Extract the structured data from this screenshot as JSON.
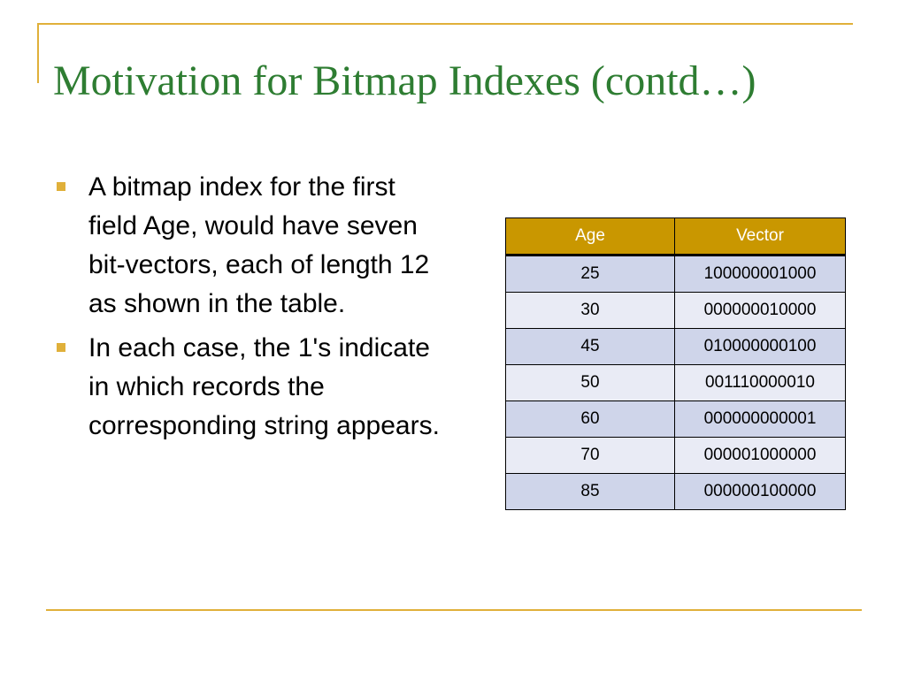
{
  "colors": {
    "accent": "#E0B03A",
    "title": "#2E7D32",
    "header_bg": "#C99700",
    "row_dark": "#CFD5EA",
    "row_light": "#E9EBF5"
  },
  "slide": {
    "title": "Motivation for Bitmap Indexes (contd…)",
    "bullets": [
      "A bitmap index for the first field Age, would have seven bit-vectors, each of length 12 as shown in the table.",
      "In each case, the 1's indicate in which records the corresponding string appears."
    ]
  },
  "table": {
    "headers": [
      "Age",
      "Vector"
    ],
    "rows": [
      [
        "25",
        "100000001000"
      ],
      [
        "30",
        "000000010000"
      ],
      [
        "45",
        "010000000100"
      ],
      [
        "50",
        "001110000010"
      ],
      [
        "60",
        "000000000001"
      ],
      [
        "70",
        "000001000000"
      ],
      [
        "85",
        "000000100000"
      ]
    ]
  }
}
